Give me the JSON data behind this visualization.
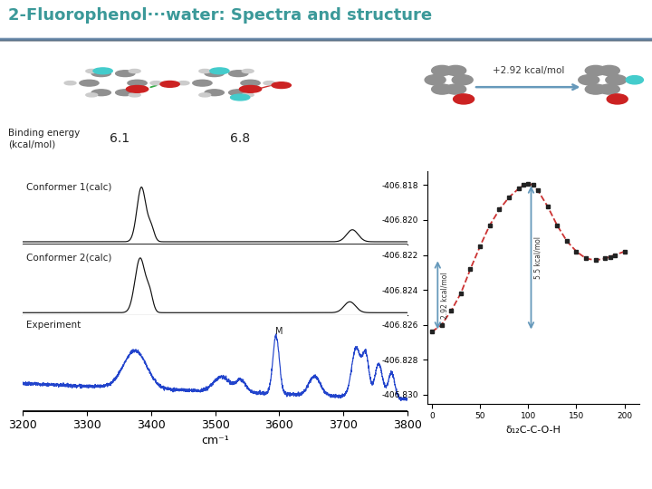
{
  "title": "2-Fluorophenol···water: Spectra and structure",
  "title_color": "#3B9999",
  "background_color": "#FFFFFF",
  "header_bg_color": "#F0F4F8",
  "header_line_color": "#8899BB",
  "binding_energies": [
    "6.1",
    "6.8"
  ],
  "binding_energy_label": "Binding energy\n(kcal/mol)",
  "conformer1_label": "Conformer 1(calc)",
  "conformer2_label": "Conformer 2(calc)",
  "experiment_label": "Experiment",
  "xlabel": "cm⁻¹",
  "xmin": 3200,
  "xmax": 3800,
  "energy_xlabel": "δ₁₂C-C-O-H",
  "energy_arrow_label": "+2.92 kcal/mol",
  "curve_color": "#CC3333",
  "arrow_color": "#6699BB",
  "spec_color_calc": "#111111",
  "spec_color_exp": "#2244CC",
  "theta": [
    0,
    10,
    20,
    30,
    40,
    50,
    60,
    70,
    80,
    90,
    95,
    100,
    105,
    110,
    120,
    130,
    140,
    150,
    160,
    170,
    180,
    185,
    190,
    200
  ],
  "E_vals": [
    -406.8264,
    -406.826,
    -406.8252,
    -406.8242,
    -406.8228,
    -406.8215,
    -406.8203,
    -406.8194,
    -406.8187,
    -406.8182,
    -406.818,
    -406.8179,
    -406.818,
    -406.8183,
    -406.8192,
    -406.8203,
    -406.8212,
    -406.8218,
    -406.8222,
    -406.8223,
    -406.8222,
    -406.8221,
    -406.822,
    -406.8218
  ]
}
